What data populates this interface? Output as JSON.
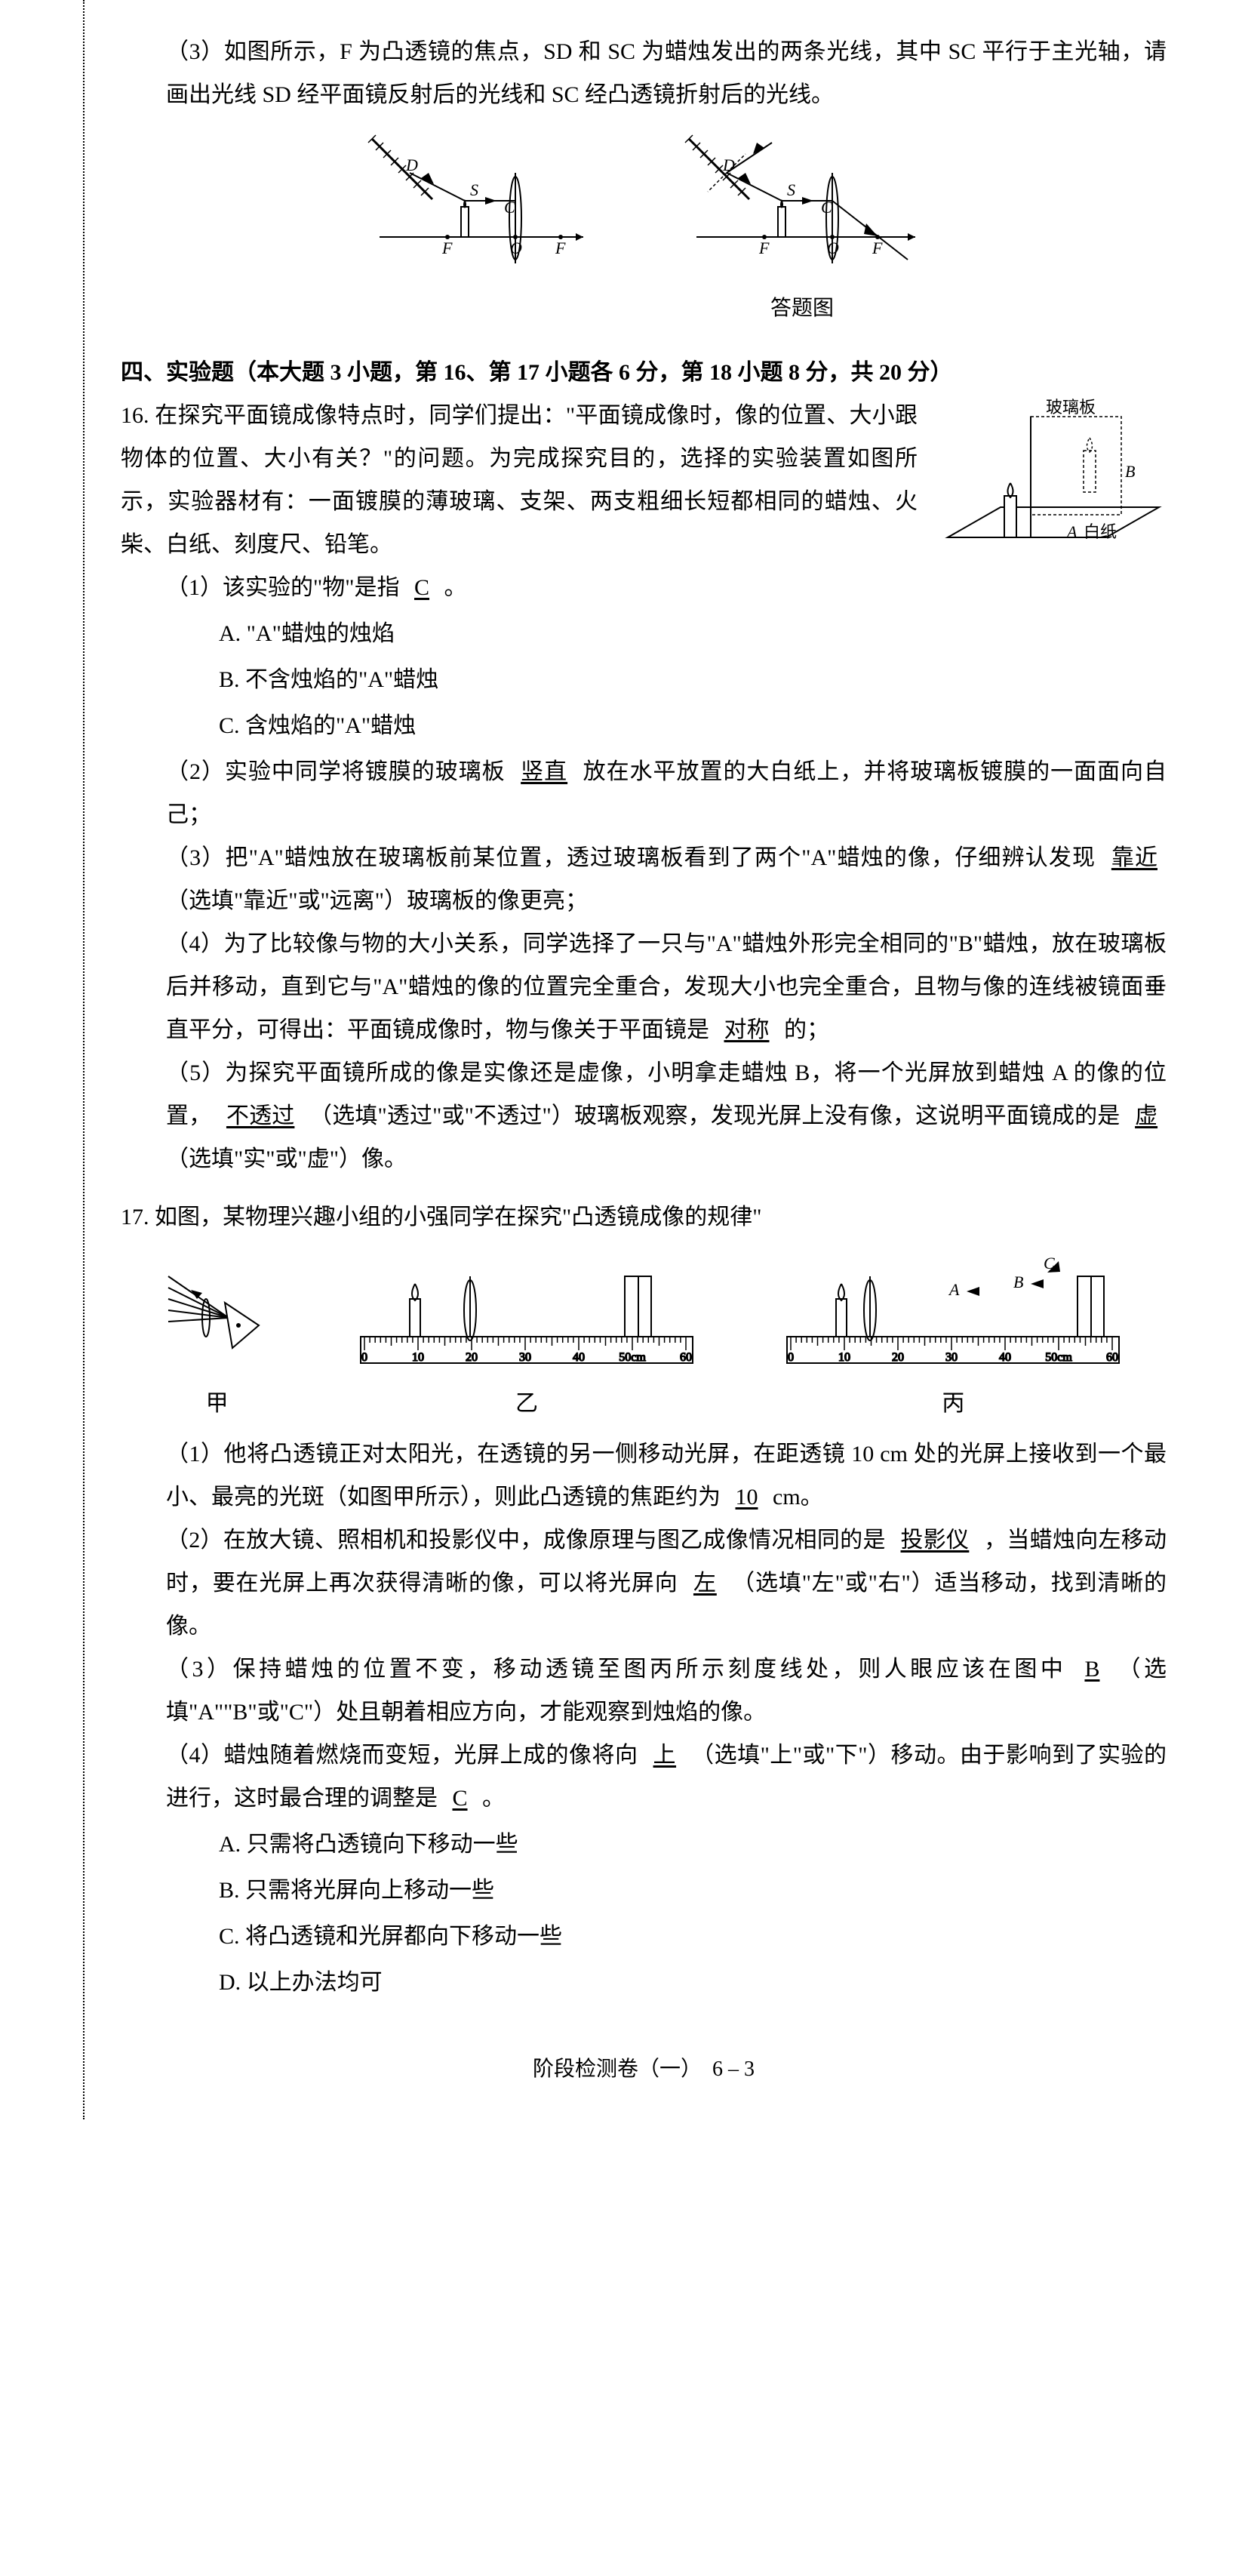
{
  "q15_3": {
    "text": "（3）如图所示，F 为凸透镜的焦点，SD 和 SC 为蜡烛发出的两条光线，其中 SC 平行于主光轴，请画出光线 SD 经平面镜反射后的光线和 SC 经凸透镜折射后的光线。",
    "answer_caption": "答题图"
  },
  "section4": {
    "heading": "四、实验题（本大题 3 小题，第 16、第 17 小题各 6 分，第 18 小题 8 分，共 20 分）"
  },
  "q16": {
    "number": "16.",
    "intro": "在探究平面镜成像特点时，同学们提出：\"平面镜成像时，像的位置、大小跟物体的位置、大小有关？\"的问题。为完成探究目的，选择的实验装置如图所示，实验器材有：一面镀膜的薄玻璃、支架、两支粗细长短都相同的蜡烛、火柴、白纸、刻度尺、铅笔。",
    "sub1": {
      "text_before": "（1）该实验的\"物\"是指",
      "answer": "C",
      "text_after": "。",
      "opt_a": "A. \"A\"蜡烛的烛焰",
      "opt_b": "B. 不含烛焰的\"A\"蜡烛",
      "opt_c": "C. 含烛焰的\"A\"蜡烛"
    },
    "sub2": {
      "text_before": "（2）实验中同学将镀膜的玻璃板",
      "answer": "竖直",
      "text_after": "放在水平放置的大白纸上，并将玻璃板镀膜的一面面向自己；"
    },
    "sub3": {
      "text_before": "（3）把\"A\"蜡烛放在玻璃板前某位置，透过玻璃板看到了两个\"A\"蜡烛的像，仔细辨认发现",
      "answer": "靠近",
      "text_after": "（选填\"靠近\"或\"远离\"）玻璃板的像更亮；"
    },
    "sub4": {
      "text_before": "（4）为了比较像与物的大小关系，同学选择了一只与\"A\"蜡烛外形完全相同的\"B\"蜡烛，放在玻璃板后并移动，直到它与\"A\"蜡烛的像的位置完全重合，发现大小也完全重合，且物与像的连线被镜面垂直平分，可得出：平面镜成像时，物与像关于平面镜是",
      "answer": "对称",
      "text_after": "的；"
    },
    "sub5": {
      "text_before": "（5）为探究平面镜所成的像是实像还是虚像，小明拿走蜡烛 B，将一个光屏放到蜡烛 A 的像的位置，",
      "answer1": "不透过",
      "text_mid": "（选填\"透过\"或\"不透过\"）玻璃板观察，发现光屏上没有像，这说明平面镜成的是",
      "answer2": "虚",
      "text_after": "（选填\"实\"或\"虚\"）像。"
    },
    "fig_labels": {
      "glass": "玻璃板",
      "b": "B",
      "a": "A",
      "paper": "白纸"
    }
  },
  "q17": {
    "number": "17.",
    "intro": "如图，某物理兴趣小组的小强同学在探究\"凸透镜成像的规律\"",
    "fig_labels": {
      "jia": "甲",
      "yi": "乙",
      "bing": "丙",
      "A": "A",
      "B": "B",
      "C": "C",
      "ticks": [
        "0",
        "10",
        "20",
        "30",
        "40",
        "50cm",
        "60"
      ]
    },
    "sub1": {
      "text_before": "（1）他将凸透镜正对太阳光，在透镜的另一侧移动光屏，在距透镜 10 cm 处的光屏上接收到一个最小、最亮的光斑（如图甲所示），则此凸透镜的焦距约为",
      "answer": "10",
      "text_after": "cm。"
    },
    "sub2": {
      "text_before": "（2）在放大镜、照相机和投影仪中，成像原理与图乙成像情况相同的是",
      "answer1": "投影仪",
      "text_mid": "，当蜡烛向左移动时，要在光屏上再次获得清晰的像，可以将光屏向",
      "answer2": "左",
      "text_after": "（选填\"左\"或\"右\"）适当移动，找到清晰的像。"
    },
    "sub3": {
      "text_before": "（3）保持蜡烛的位置不变，移动透镜至图丙所示刻度线处，则人眼应该在图中",
      "answer": "B",
      "text_after": "（选填\"A\"\"B\"或\"C\"）处且朝着相应方向，才能观察到烛焰的像。"
    },
    "sub4": {
      "text_before": "（4）蜡烛随着燃烧而变短，光屏上成的像将向",
      "answer1": "上",
      "text_mid": "（选填\"上\"或\"下\"）移动。由于影响到了实验的进行，这时最合理的调整是",
      "answer2": "C",
      "text_after": "。",
      "opt_a": "A. 只需将凸透镜向下移动一些",
      "opt_b": "B. 只需将光屏向上移动一些",
      "opt_c": "C. 将凸透镜和光屏都向下移动一些",
      "opt_d": "D. 以上办法均可"
    }
  },
  "footer": "阶段检测卷（一）　6 – 3"
}
